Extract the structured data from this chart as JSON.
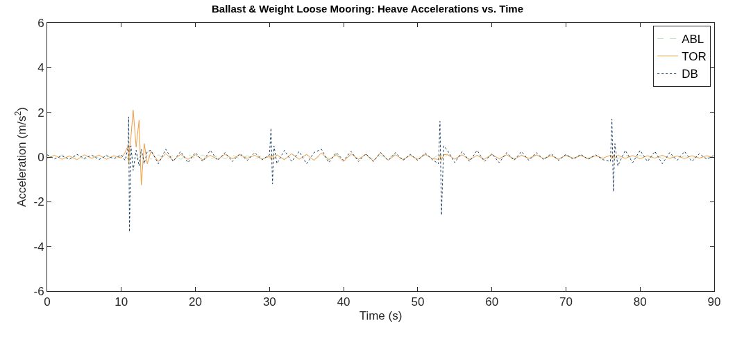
{
  "chart_data": {
    "type": "line",
    "title": "Ballast & Weight Loose Mooring: Heave Accelerations vs. Time",
    "xlabel": "Time (s)",
    "ylabel": "Acceleration (m/s$^{2}$)",
    "x": [
      0,
      1,
      2,
      3,
      4,
      5,
      6,
      7,
      8,
      9,
      10,
      10.5,
      10.9,
      11.0,
      11.1,
      11.3,
      11.6,
      12.0,
      12.4,
      12.7,
      13.1,
      13.5,
      14,
      15,
      16,
      17,
      18,
      19,
      20,
      21,
      22,
      23,
      24,
      25,
      26,
      27,
      28,
      29,
      30,
      30.2,
      30.4,
      30.6,
      31,
      32,
      33,
      34,
      35,
      36,
      37,
      38,
      39,
      40,
      41,
      42,
      43,
      44,
      45,
      46,
      47,
      48,
      49,
      50,
      51,
      52,
      52.8,
      53.0,
      53.2,
      53.5,
      54,
      55,
      56,
      57,
      58,
      59,
      60,
      61,
      62,
      63,
      64,
      65,
      66,
      67,
      68,
      69,
      70,
      71,
      72,
      73,
      74,
      75,
      76,
      76.2,
      76.4,
      76.6,
      77,
      78,
      79,
      80,
      81,
      82,
      83,
      84,
      85,
      86,
      87,
      88,
      89,
      90
    ],
    "series": [
      {
        "name": "ABL",
        "color": "#b9e3bf",
        "line_style": "dashed",
        "values": [
          0.08,
          -0.05,
          0.1,
          -0.08,
          0.06,
          -0.1,
          0.09,
          -0.04,
          0.07,
          -0.09,
          0.05,
          0.1,
          -0.1,
          0.15,
          -0.2,
          0.2,
          -0.1,
          0.12,
          -0.15,
          0.1,
          -0.08,
          0.12,
          -0.1,
          0.1,
          -0.12,
          0.08,
          -0.1,
          0.12,
          -0.06,
          0.09,
          -0.11,
          0.07,
          -0.08,
          0.1,
          -0.09,
          0.06,
          -0.1,
          0.08,
          -0.05,
          0.12,
          -0.1,
          0.1,
          0.08,
          -0.1,
          0.12,
          -0.08,
          0.1,
          -0.12,
          0.09,
          -0.07,
          0.11,
          -0.1,
          0.08,
          -0.09,
          0.1,
          -0.11,
          0.07,
          -0.06,
          0.15,
          -0.1,
          0.08,
          -0.12,
          0.1,
          -0.08,
          0.1,
          -0.12,
          0.1,
          -0.08,
          0.1,
          -0.08,
          0.12,
          -0.1,
          0.08,
          -0.12,
          0.1,
          -0.09,
          0.11,
          -0.07,
          0.09,
          -0.1,
          0.08,
          -0.06,
          0.1,
          -0.09,
          0.07,
          -0.1,
          0.08,
          -0.05,
          0.09,
          -0.08,
          0.06,
          0.08,
          -0.1,
          0.1,
          -0.08,
          0.1,
          -0.1,
          0.08,
          -0.09,
          0.1,
          -0.07,
          0.09,
          -0.1,
          0.06,
          -0.08,
          0.07,
          -0.05,
          0.06
        ]
      },
      {
        "name": "TOR",
        "color": "#f39a3c",
        "line_style": "solid",
        "values": [
          -0.05,
          0.08,
          -0.1,
          0.05,
          -0.12,
          0.1,
          -0.06,
          0.09,
          -0.1,
          0.06,
          -0.04,
          0.2,
          0.5,
          -0.3,
          0.3,
          0.9,
          2.1,
          0.45,
          1.65,
          -1.25,
          0.6,
          -0.3,
          0.25,
          -0.2,
          0.15,
          -0.15,
          0.12,
          -0.1,
          0.1,
          -0.12,
          0.08,
          -0.1,
          0.12,
          -0.08,
          0.1,
          -0.06,
          0.08,
          -0.1,
          0.05,
          -0.1,
          0.08,
          -0.08,
          0.1,
          -0.12,
          0.15,
          -0.1,
          0.12,
          -0.15,
          0.18,
          -0.12,
          0.1,
          -0.2,
          0.15,
          -0.1,
          0.12,
          -0.18,
          0.2,
          -0.15,
          0.1,
          -0.12,
          0.08,
          -0.1,
          0.12,
          -0.08,
          -0.1,
          0.1,
          -0.15,
          0.1,
          0.12,
          -0.1,
          0.1,
          -0.12,
          0.08,
          -0.1,
          0.12,
          -0.08,
          0.1,
          -0.1,
          0.08,
          -0.06,
          0.1,
          -0.08,
          0.06,
          -0.1,
          0.08,
          -0.05,
          0.07,
          -0.08,
          0.06,
          -0.05,
          0.08,
          -0.08,
          0.1,
          -0.06,
          0.08,
          -0.06,
          0.07,
          -0.08,
          0.06,
          -0.05,
          0.08,
          -0.06,
          0.05,
          -0.07,
          0.06,
          -0.05,
          0.06,
          -0.04
        ]
      },
      {
        "name": "DB",
        "color": "#1c3d63",
        "line_style": "dotted",
        "values": [
          0.1,
          -0.08,
          0.05,
          -0.1,
          0.12,
          -0.06,
          0.08,
          -0.11,
          0.06,
          -0.07,
          0.1,
          -0.15,
          0.4,
          1.8,
          -3.35,
          0.5,
          -0.6,
          0.3,
          -0.4,
          0.35,
          -0.3,
          0.25,
          0.3,
          -0.3,
          0.35,
          -0.2,
          0.25,
          -0.25,
          0.2,
          -0.2,
          0.3,
          -0.15,
          0.2,
          -0.2,
          0.15,
          -0.15,
          0.2,
          -0.12,
          0.1,
          1.3,
          -1.2,
          0.5,
          -0.3,
          0.3,
          -0.2,
          0.25,
          -0.3,
          0.2,
          0.35,
          -0.25,
          0.2,
          -0.15,
          0.25,
          -0.2,
          0.15,
          -0.2,
          0.2,
          -0.15,
          0.2,
          -0.15,
          0.12,
          -0.15,
          0.18,
          -0.12,
          -0.3,
          1.6,
          -2.6,
          0.5,
          0.3,
          -0.25,
          0.25,
          -0.2,
          0.3,
          -0.2,
          0.15,
          -0.25,
          0.2,
          -0.15,
          0.25,
          -0.15,
          0.2,
          -0.12,
          0.15,
          -0.15,
          0.12,
          -0.1,
          0.12,
          -0.1,
          0.1,
          -0.12,
          -0.2,
          1.7,
          -1.55,
          0.6,
          -0.4,
          0.3,
          -0.25,
          0.3,
          -0.2,
          0.25,
          -0.3,
          0.2,
          -0.15,
          0.25,
          -0.2,
          0.15,
          -0.1,
          0.08
        ]
      }
    ],
    "xlim": [
      0,
      90
    ],
    "xticks": [
      0,
      10,
      20,
      30,
      40,
      50,
      60,
      70,
      80,
      90
    ],
    "ylim": [
      -6,
      6
    ],
    "yticks": [
      -6,
      -4,
      -2,
      0,
      2,
      4,
      6
    ],
    "legend": "top right"
  }
}
